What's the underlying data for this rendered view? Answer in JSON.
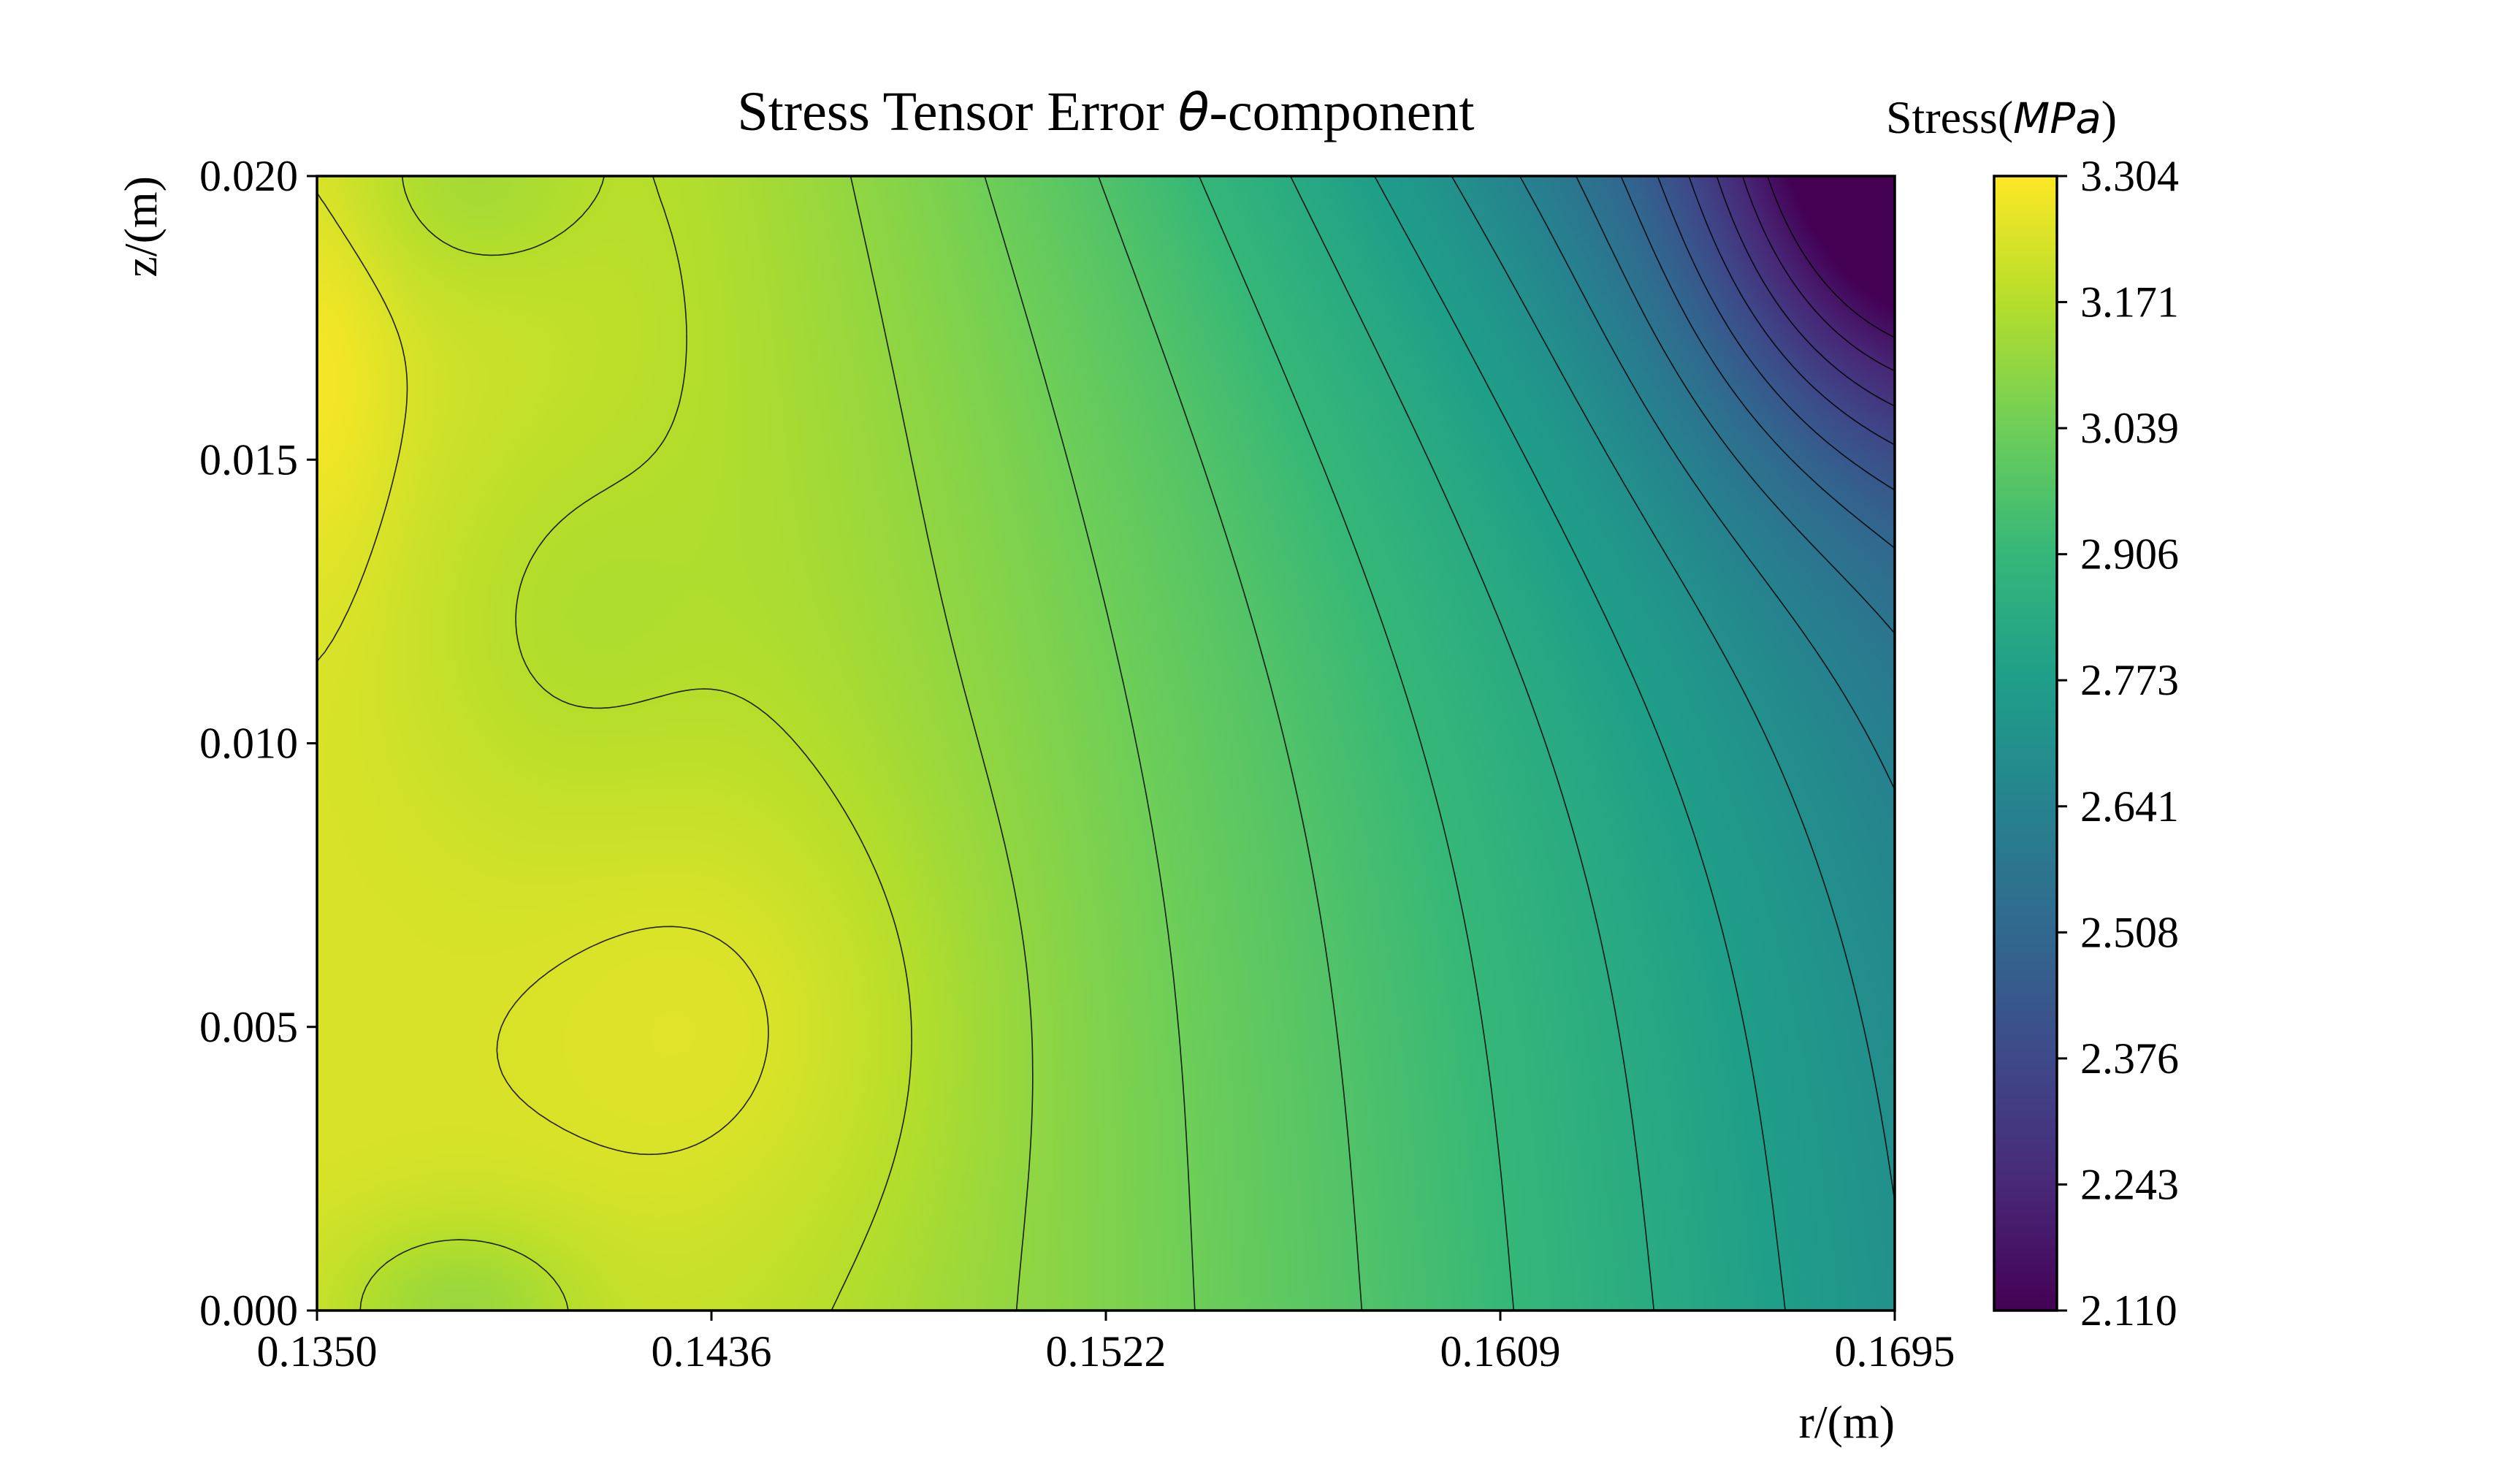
{
  "chart_data": {
    "type": "heatmap",
    "title_prefix": "Stress Tensor Error ",
    "title_symbol": "θ",
    "title_suffix": "-component",
    "xlabel": "r/(m)",
    "ylabel": "z/(m)",
    "colorbar_label_prefix": "Stress(",
    "colorbar_label_unit": "MPa",
    "colorbar_label_suffix": ")",
    "xlim": [
      0.135,
      0.1695
    ],
    "ylim": [
      0.0,
      0.02
    ],
    "value_range": [
      2.11,
      3.304
    ],
    "colormap": "viridis",
    "x_ticks": [
      "0.1350",
      "0.1436",
      "0.1522",
      "0.1609",
      "0.1695"
    ],
    "y_ticks": [
      "0.000",
      "0.005",
      "0.010",
      "0.015",
      "0.020"
    ],
    "colorbar_ticks": [
      "2.110",
      "2.243",
      "2.376",
      "2.508",
      "2.641",
      "2.773",
      "2.906",
      "3.039",
      "3.171",
      "3.304"
    ],
    "contour_levels": 18,
    "notable_points": [
      {
        "r": 0.135,
        "z": 0.0165,
        "value": 3.29,
        "feature": "local maximum at left edge"
      },
      {
        "r": 0.1446,
        "z": 0.005,
        "value": 3.28,
        "feature": "local maximum"
      },
      {
        "r": 0.138,
        "z": 0.0,
        "value": 3.12,
        "feature": "local minimum at bottom edge"
      },
      {
        "r": 0.1381,
        "z": 0.02,
        "value": 3.15,
        "feature": "local minimum at top edge"
      },
      {
        "r": 0.1695,
        "z": 0.02,
        "value": 2.11,
        "feature": "global minimum at top-right corner"
      },
      {
        "r": 0.1695,
        "z": 0.0,
        "value": 2.6,
        "feature": "bottom-right corner"
      }
    ]
  }
}
